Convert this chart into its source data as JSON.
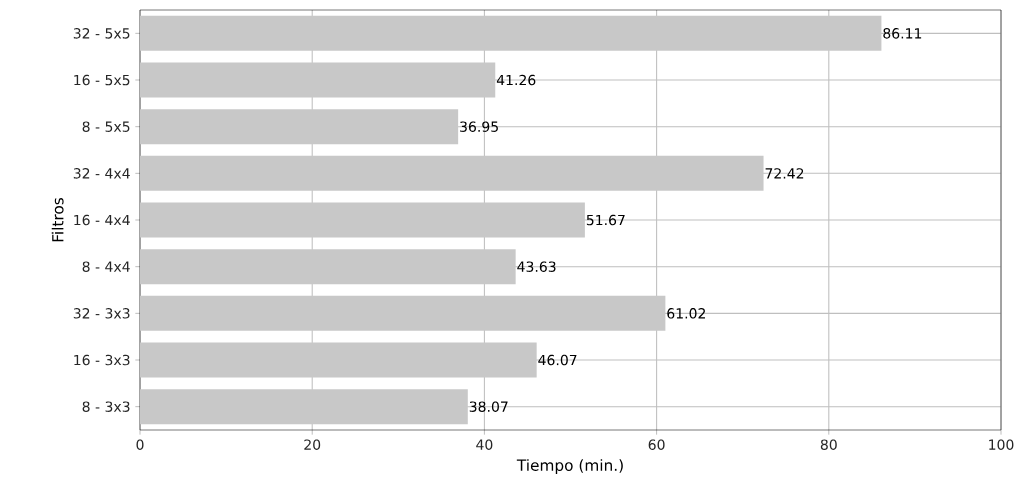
{
  "chart_data": {
    "type": "bar",
    "orientation": "horizontal",
    "xlabel": "Tiempo (min.)",
    "ylabel": "Filtros",
    "categories": [
      "32 - 5x5",
      "16 - 5x5",
      "8 - 5x5",
      "32 - 4x4",
      "16 - 4x4",
      "8 - 4x4",
      "32 - 3x3",
      "16 - 3x3",
      "8 - 3x3"
    ],
    "values": [
      86.11,
      41.26,
      36.95,
      72.42,
      51.67,
      43.63,
      61.02,
      46.07,
      38.07
    ],
    "color": "#c8c8c8",
    "xlim": [
      0,
      100
    ],
    "xticks": [
      0,
      20,
      40,
      60,
      80,
      100
    ],
    "grid": true,
    "data_labels": true
  }
}
